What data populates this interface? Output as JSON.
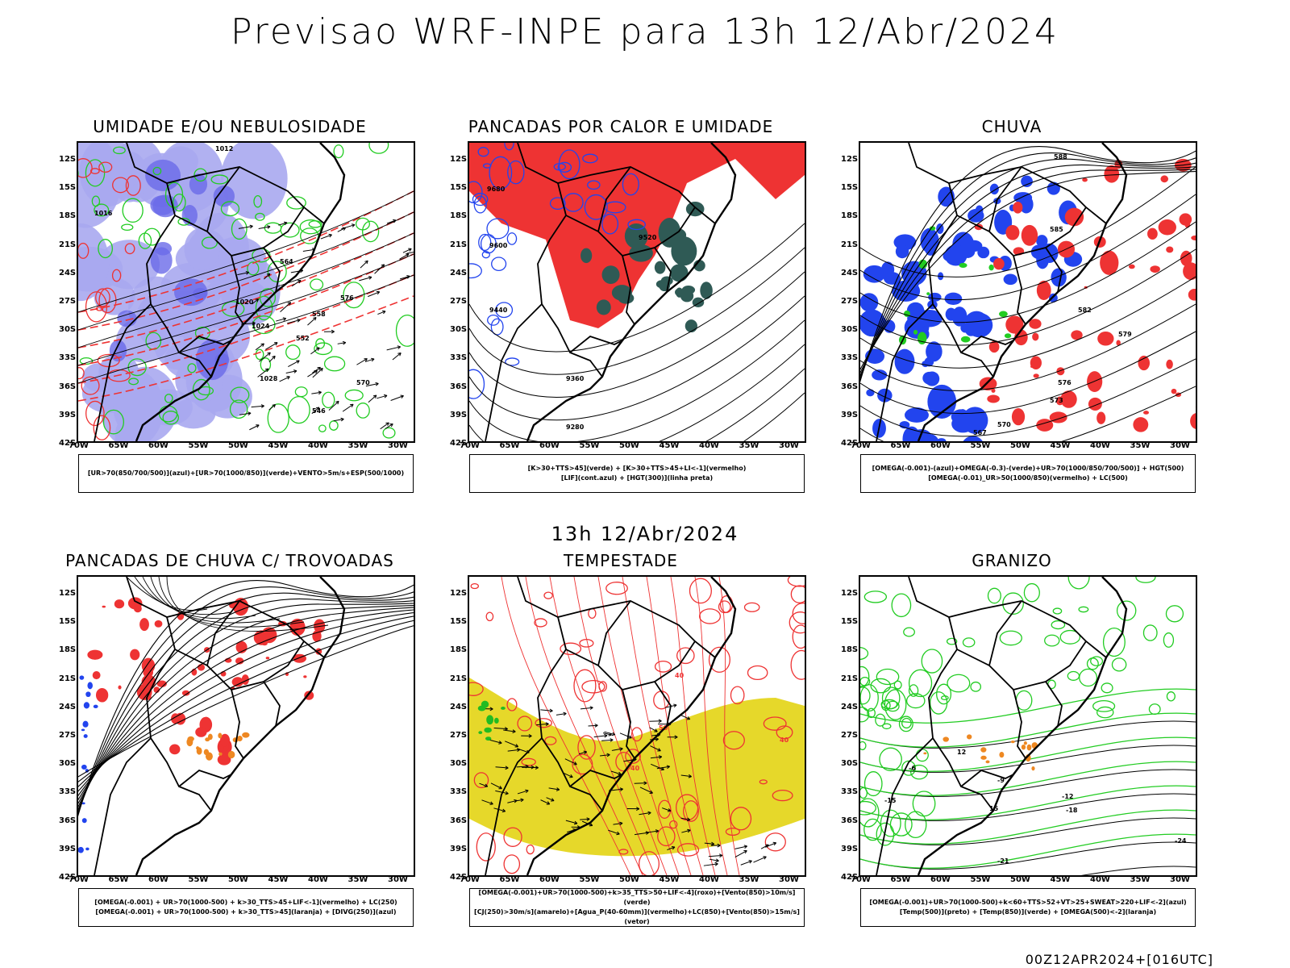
{
  "title": "Previsao WRF-INPE  para 13h 12/Abr/2024",
  "mid_date": "13h 12/Abr/2024",
  "footer": "00Z12APR2024+[016UTC]",
  "lat_ticks": [
    "12S",
    "15S",
    "18S",
    "21S",
    "24S",
    "27S",
    "30S",
    "33S",
    "36S",
    "39S",
    "42S"
  ],
  "lon_ticks": [
    "70W",
    "65W",
    "60W",
    "55W",
    "50W",
    "45W",
    "40W",
    "35W",
    "30W"
  ],
  "colors": {
    "humidity_blue": "#a8a8f0",
    "humidity_dark_blue": "#6a6ae8",
    "green_contour": "#22cc22",
    "red": "#ee3333",
    "dark_teal": "#2f5a55",
    "blue": "#2244ee",
    "yellow": "#e6d82a",
    "orange": "#ee8822"
  },
  "panels": [
    {
      "title": "UMIDADE E/OU NEBULOSIDADE",
      "legend": [
        "[UR>70(850/700/500)](azul)+[UR>70(1000/850)](verde)+VENTO>5m/s+ESP(500/1000)"
      ],
      "contour_labels": [
        "1012",
        "1016",
        "1020",
        "1024",
        "1028",
        "576",
        "570",
        "564",
        "558",
        "552",
        "546"
      ]
    },
    {
      "title": "PANCADAS POR CALOR E UMIDADE",
      "legend": [
        "[K>30+TTS>45](verde) + [K>30+TTS>45+LI<-1](vermelho)",
        "[LIF](cont.azul) + [HGT(300)](linha preta)"
      ],
      "contour_labels": [
        "9680",
        "9600",
        "9520",
        "9440",
        "9360",
        "9280"
      ]
    },
    {
      "title": "CHUVA",
      "legend": [
        "[OMEGA(-0.001)-(azul)+OMEGA(-0.3)-(verde)+UR>70(1000/850/700/500)] + HGT(500)",
        "[OMEGA(-0.01)_UR>50(1000/850)(vermelho) + LC(500)"
      ],
      "contour_labels": [
        "588",
        "585",
        "582",
        "579",
        "576",
        "573",
        "570",
        "567"
      ]
    },
    {
      "title": "PANCADAS DE CHUVA C/ TROVOADAS",
      "legend": [
        "[OMEGA(-0.001) + UR>70(1000-500) + k>30_TTS>45+LIF<-1](vermelho) + LC(250)",
        "[OMEGA(-0.001) + UR>70(1000-500) + k>30_TTS>45](laranja) + [DIVG(250)](azul)"
      ],
      "contour_labels": []
    },
    {
      "title": "TEMPESTADE",
      "legend": [
        "[OMEGA(-0.001)+UR>70(1000-500)+k>35_TTS>50+LIF<-4](roxo)+[Vento(850)>10m/s](verde)",
        "[CJ(250)>30m/s](amarelo)+[Agua_P(40-60mm)](vermelho)+LC(850)+[Vento(850)>15m/s](vetor)"
      ],
      "contour_labels": [
        "40",
        "50",
        "40",
        "40"
      ]
    },
    {
      "title": "GRANIZO",
      "legend": [
        "[OMEGA(-0.001)+UR>70(1000-500)+k<60+TTS>52+VT>25+SWEAT>220+LIF<-2](azul)",
        "[Temp(500)](preto) + [Temp(850)](verde) + [OMEGA(500)<-2](laranja)"
      ],
      "contour_labels": [
        "-6",
        "-9",
        "-12",
        "-15",
        "-18",
        "-21",
        "-24",
        "12",
        "15"
      ]
    }
  ]
}
